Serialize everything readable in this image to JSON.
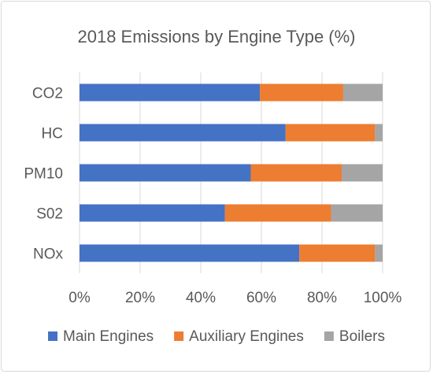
{
  "chart_data": {
    "type": "bar",
    "orientation": "horizontal",
    "stacked": "percent",
    "title": "2018 Emissions by Engine Type (%)",
    "categories": [
      "CO2",
      "HC",
      "PM10",
      "S02",
      "NOx"
    ],
    "series": [
      {
        "name": "Main Engines",
        "color": "#4472C4",
        "values": [
          59.5,
          68,
          56.5,
          48,
          72.5
        ]
      },
      {
        "name": "Auxiliary Engines",
        "color": "#ED7D31",
        "values": [
          27.5,
          29.5,
          30,
          35,
          25
        ]
      },
      {
        "name": "Boilers",
        "color": "#A5A5A5",
        "values": [
          13,
          2.5,
          13.5,
          17,
          2.5
        ]
      }
    ],
    "xlim": [
      0,
      100
    ],
    "x_ticks": [
      "0%",
      "20%",
      "40%",
      "60%",
      "80%",
      "100%"
    ],
    "grid": "vertical",
    "legend_position": "bottom"
  }
}
